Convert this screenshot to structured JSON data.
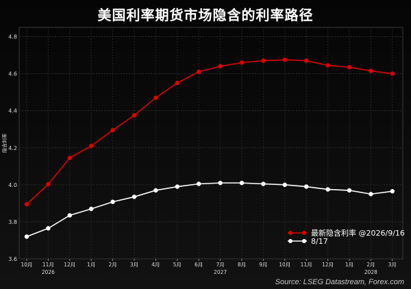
{
  "title": "美国利率期货市场隐含的利率路径",
  "source": "Source: LSEG Datastream, Forex.com",
  "colors": {
    "background": "#0a0a0a",
    "latest": "#e00000",
    "previous": "#ffffff",
    "grid": "#2a2a2a"
  },
  "chart_data": {
    "type": "line",
    "title": "美国利率期货市场隐含的利率路径",
    "ylabel": "隐含利率",
    "ylim": [
      3.6,
      4.85
    ],
    "yticks": [
      3.6,
      3.8,
      4.0,
      4.2,
      4.4,
      4.6,
      4.8
    ],
    "categories": [
      "10月",
      "11月",
      "12月",
      "1月",
      "2月",
      "3月",
      "4月",
      "5月",
      "6月",
      "7月",
      "8月",
      "9月",
      "10月",
      "11月",
      "12月",
      "1月",
      "2月",
      "3月"
    ],
    "year_labels": [
      {
        "index": 1,
        "label": "2026"
      },
      {
        "index": 9,
        "label": "2027"
      },
      {
        "index": 16,
        "label": "2028"
      }
    ],
    "grid": true,
    "legend_position": "bottom-right",
    "series": [
      {
        "name": "最新隐含利率 @2026/9/16",
        "color": "#e00000",
        "values": [
          3.895,
          4.003,
          4.145,
          4.21,
          4.295,
          4.375,
          4.47,
          4.55,
          4.61,
          4.64,
          4.66,
          4.67,
          4.675,
          4.67,
          4.645,
          4.635,
          4.615,
          4.6
        ]
      },
      {
        "name": "8/17",
        "color": "#ffffff",
        "values": [
          3.72,
          3.765,
          3.835,
          3.87,
          3.908,
          3.935,
          3.97,
          3.99,
          4.005,
          4.01,
          4.01,
          4.005,
          4.0,
          3.99,
          3.975,
          3.97,
          3.95,
          3.965
        ]
      }
    ]
  }
}
